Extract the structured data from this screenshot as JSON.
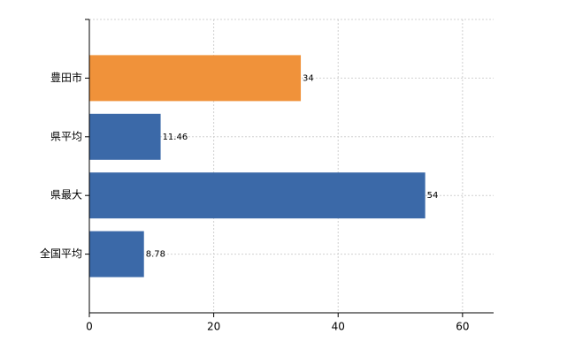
{
  "chart_data": {
    "type": "barh",
    "categories": [
      "豊田市",
      "県平均",
      "県最大",
      "全国平均"
    ],
    "values": [
      34,
      11.46,
      54,
      8.78
    ],
    "colors": [
      "#f0923a",
      "#3b69a8",
      "#3b69a8",
      "#3b69a8"
    ],
    "xlim": [
      0,
      65
    ],
    "xticks": [
      0,
      20,
      40,
      60
    ],
    "grid": true
  }
}
